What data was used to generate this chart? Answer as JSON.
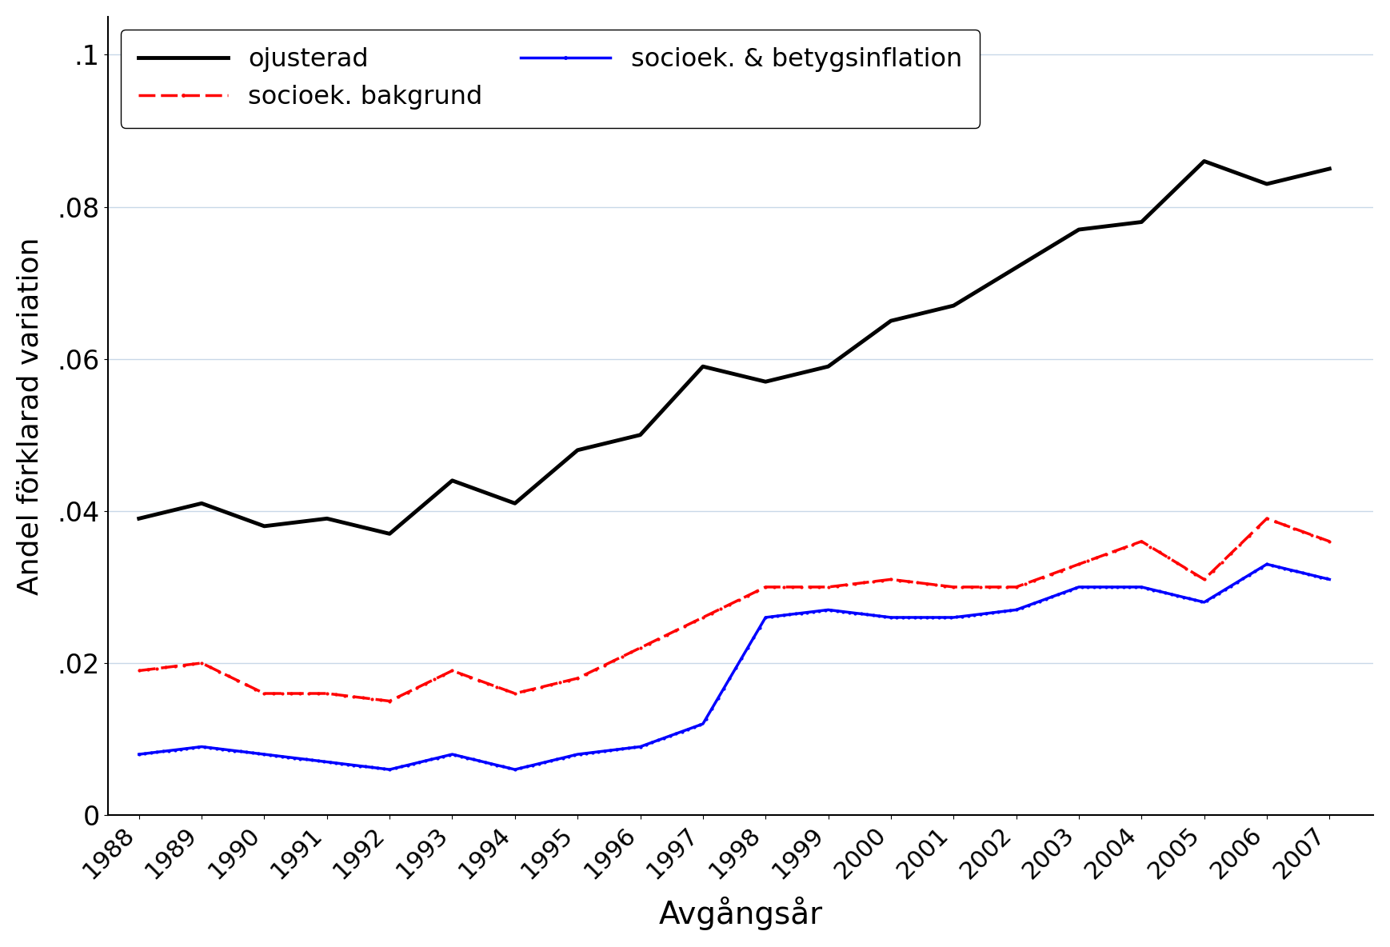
{
  "years": [
    1988,
    1989,
    1990,
    1991,
    1992,
    1993,
    1994,
    1995,
    1996,
    1997,
    1998,
    1999,
    2000,
    2001,
    2002,
    2003,
    2004,
    2005,
    2006,
    2007
  ],
  "ojusterad": [
    0.039,
    0.041,
    0.038,
    0.039,
    0.037,
    0.044,
    0.041,
    0.048,
    0.05,
    0.059,
    0.057,
    0.059,
    0.065,
    0.067,
    0.072,
    0.077,
    0.078,
    0.086,
    0.083,
    0.085
  ],
  "socioek_bakgrund": [
    0.019,
    0.02,
    0.016,
    0.016,
    0.015,
    0.019,
    0.016,
    0.018,
    0.022,
    0.026,
    0.03,
    0.03,
    0.031,
    0.03,
    0.03,
    0.033,
    0.036,
    0.031,
    0.039,
    0.036
  ],
  "socioek_betygsinflation": [
    0.008,
    0.009,
    0.008,
    0.007,
    0.006,
    0.008,
    0.006,
    0.008,
    0.009,
    0.012,
    0.026,
    0.027,
    0.026,
    0.026,
    0.027,
    0.03,
    0.03,
    0.028,
    0.033,
    0.031
  ],
  "xlabel": "Avgångsår",
  "ylabel": "Andel förklarad variation",
  "legend_ojusterad": "ojusterad",
  "legend_socioek_bakgrund": "socioek. bakgrund",
  "legend_socioek_betygsinflation": "socioek. & betygsinflation",
  "ylim": [
    0,
    0.105
  ],
  "yticks": [
    0,
    0.02,
    0.04,
    0.06,
    0.08,
    0.1
  ],
  "ytick_labels": [
    "0",
    ".02",
    ".04",
    ".06",
    ".08",
    ".1"
  ],
  "color_ojusterad": "#000000",
  "color_socioek_bakgrund": "#ff0000",
  "color_socioek_betygsinflation": "#0000ff",
  "background_color": "#ffffff",
  "grid_color": "#c8d8e8"
}
